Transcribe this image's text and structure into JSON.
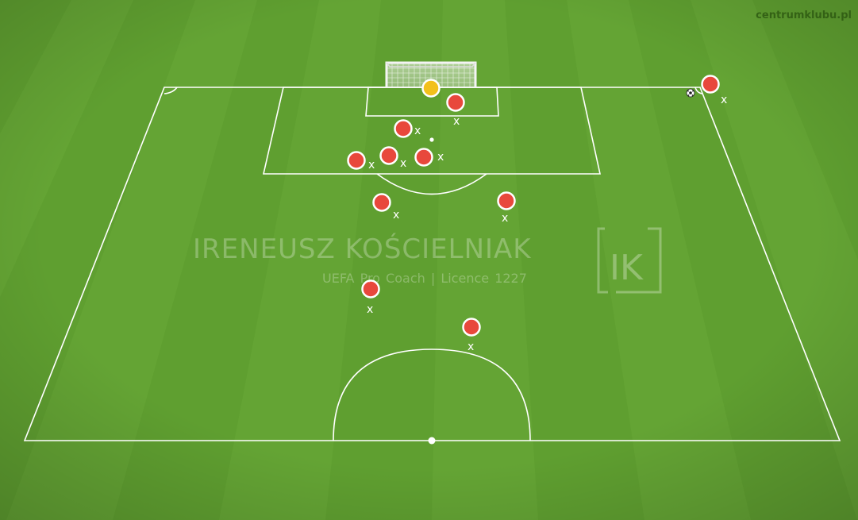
{
  "site": {
    "url": "centrumklubu.pl"
  },
  "watermark": {
    "name": "IRENEUSZ KOŚCIELNIAK",
    "subtitle": "UEFA Pro Coach   |   Licence 1227",
    "logo_text": "IK"
  },
  "colors": {
    "grass_light": "#6aa838",
    "grass_dark": "#5b9a2c",
    "line": "#ffffff",
    "player": "#e8483c",
    "goalkeeper": "#f2c01c"
  },
  "player_marker": "x",
  "players": [
    {
      "id": "p1",
      "label": "x"
    },
    {
      "id": "p2",
      "label": "x"
    },
    {
      "id": "p3",
      "label": "x"
    },
    {
      "id": "p4",
      "label": "x"
    },
    {
      "id": "p5",
      "label": "x"
    },
    {
      "id": "p6",
      "label": "x"
    },
    {
      "id": "p7",
      "label": "x"
    },
    {
      "id": "p8",
      "label": "x"
    },
    {
      "id": "p9",
      "label": "x"
    },
    {
      "id": "p10",
      "label": "x"
    }
  ],
  "goalkeeper": {
    "id": "gk"
  },
  "ball": {
    "icon": "soccer-ball-icon"
  }
}
